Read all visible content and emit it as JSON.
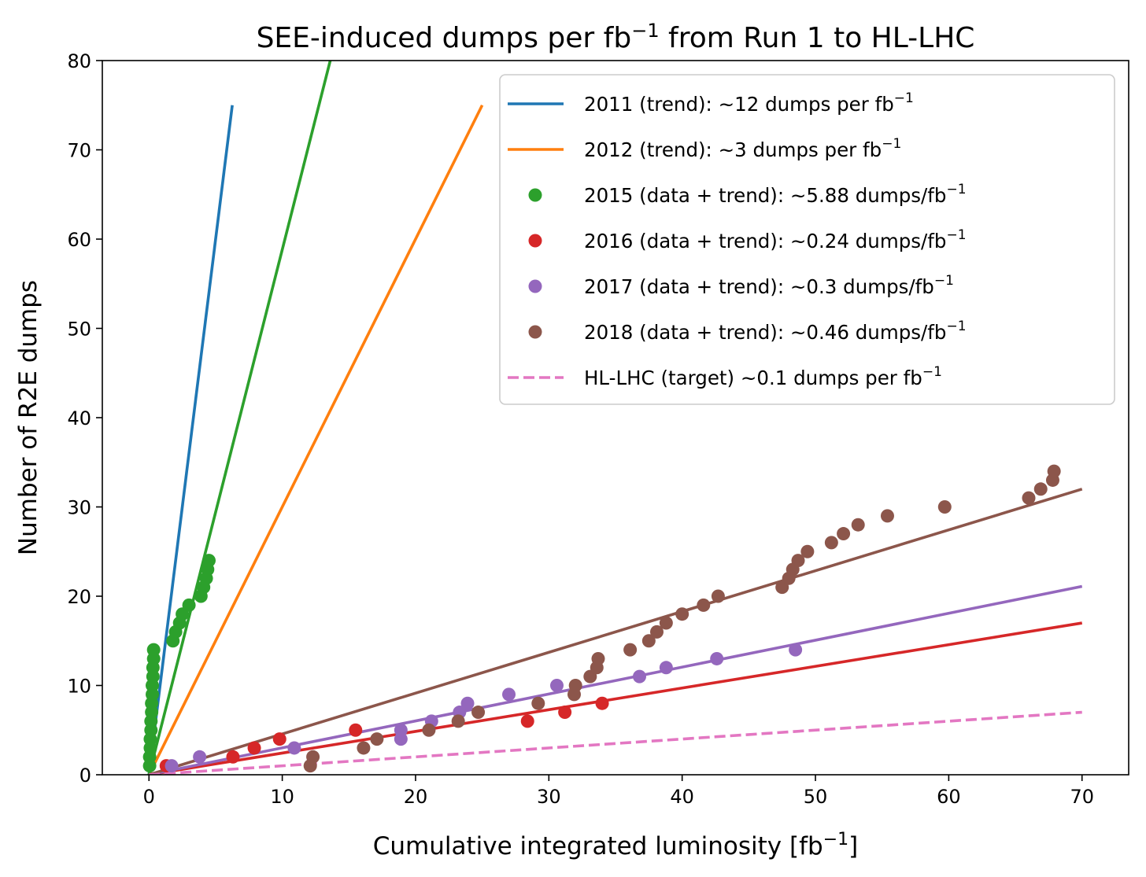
{
  "chart_data": {
    "type": "scatter",
    "title": {
      "pre": "SEE-induced dumps per fb",
      "sup": "−1",
      "post": " from Run 1 to HL-LHC"
    },
    "xlabel": {
      "pre": "Cumulative integrated luminosity [fb",
      "sup": "−1",
      "post": "]"
    },
    "ylabel": "Number of R2E dumps",
    "xlim": [
      -3.5,
      73.5
    ],
    "ylim": [
      0,
      80
    ],
    "xticks": [
      0,
      10,
      20,
      30,
      40,
      50,
      60,
      70
    ],
    "yticks": [
      0,
      10,
      20,
      30,
      40,
      50,
      60,
      70,
      80
    ],
    "grid": false,
    "legend_position": "top-right",
    "series": [
      {
        "name": "2011 (trend): ~12 dumps per fb",
        "sup": "−1",
        "kind": "line",
        "color": "#1f77b4",
        "line": [
          [
            0,
            0
          ],
          [
            6.25,
            75
          ]
        ]
      },
      {
        "name": "2012 (trend): ~3 dumps per fb",
        "sup": "−1",
        "kind": "line",
        "color": "#ff7f0e",
        "line": [
          [
            0,
            0
          ],
          [
            25,
            75
          ]
        ]
      },
      {
        "name": "2015 (data + trend): ~5.88 dumps/fb",
        "sup": "−1",
        "kind": "scatter",
        "color": "#2ca02c",
        "line": [
          [
            0,
            0
          ],
          [
            13.6,
            80
          ]
        ],
        "points": [
          [
            0.05,
            1
          ],
          [
            0.05,
            2
          ],
          [
            0.1,
            3
          ],
          [
            0.1,
            4
          ],
          [
            0.15,
            5
          ],
          [
            0.15,
            6
          ],
          [
            0.2,
            7
          ],
          [
            0.2,
            8
          ],
          [
            0.25,
            9
          ],
          [
            0.25,
            10
          ],
          [
            0.3,
            11
          ],
          [
            0.3,
            12
          ],
          [
            0.35,
            13
          ],
          [
            0.35,
            14
          ],
          [
            1.8,
            15
          ],
          [
            2.0,
            16
          ],
          [
            2.3,
            17
          ],
          [
            2.5,
            18
          ],
          [
            3.0,
            19
          ],
          [
            3.9,
            20
          ],
          [
            4.1,
            21
          ],
          [
            4.3,
            22
          ],
          [
            4.4,
            23
          ],
          [
            4.5,
            24
          ]
        ]
      },
      {
        "name": "2016 (data + trend): ~0.24 dumps/fb",
        "sup": "−1",
        "kind": "scatter",
        "color": "#d62728",
        "line": [
          [
            0,
            0
          ],
          [
            70,
            17
          ]
        ],
        "points": [
          [
            1.3,
            1
          ],
          [
            6.3,
            2
          ],
          [
            7.9,
            3
          ],
          [
            9.8,
            4
          ],
          [
            15.5,
            5
          ],
          [
            28.4,
            6
          ],
          [
            31.2,
            7
          ],
          [
            34.0,
            8
          ]
        ]
      },
      {
        "name": "2017 (data + trend): ~0.3 dumps/fb",
        "sup": "−1",
        "kind": "scatter",
        "color": "#9467bd",
        "line": [
          [
            0,
            0
          ],
          [
            70,
            21.1
          ]
        ],
        "points": [
          [
            1.7,
            1
          ],
          [
            3.8,
            2
          ],
          [
            10.9,
            3
          ],
          [
            18.9,
            4
          ],
          [
            18.9,
            5
          ],
          [
            21.2,
            6
          ],
          [
            23.3,
            7
          ],
          [
            23.9,
            8
          ],
          [
            27.0,
            9
          ],
          [
            30.6,
            10
          ],
          [
            36.8,
            11
          ],
          [
            38.8,
            12
          ],
          [
            42.6,
            13
          ],
          [
            48.5,
            14
          ]
        ]
      },
      {
        "name": "2018 (data + trend): ~0.46 dumps/fb",
        "sup": "−1",
        "kind": "scatter",
        "color": "#8c564b",
        "line": [
          [
            0,
            0
          ],
          [
            70,
            32
          ]
        ],
        "points": [
          [
            12.1,
            1
          ],
          [
            12.3,
            2
          ],
          [
            16.1,
            3
          ],
          [
            17.1,
            4
          ],
          [
            21.0,
            5
          ],
          [
            23.2,
            6
          ],
          [
            24.7,
            7
          ],
          [
            29.2,
            8
          ],
          [
            31.9,
            9
          ],
          [
            32.0,
            10
          ],
          [
            33.1,
            11
          ],
          [
            33.6,
            12
          ],
          [
            33.7,
            13
          ],
          [
            36.1,
            14
          ],
          [
            37.5,
            15
          ],
          [
            38.1,
            16
          ],
          [
            38.8,
            17
          ],
          [
            40.0,
            18
          ],
          [
            41.6,
            19
          ],
          [
            42.7,
            20
          ],
          [
            47.5,
            21
          ],
          [
            48.0,
            22
          ],
          [
            48.3,
            23
          ],
          [
            48.7,
            24
          ],
          [
            49.4,
            25
          ],
          [
            51.2,
            26
          ],
          [
            52.1,
            27
          ],
          [
            53.2,
            28
          ],
          [
            55.4,
            29
          ],
          [
            59.7,
            30
          ],
          [
            66.0,
            31
          ],
          [
            66.9,
            32
          ],
          [
            67.8,
            33
          ],
          [
            67.9,
            34
          ]
        ]
      },
      {
        "name": "HL-LHC (target) ~0.1 dumps per fb",
        "sup": "−1",
        "kind": "dashed",
        "color": "#e377c2",
        "line": [
          [
            0,
            0
          ],
          [
            70,
            7
          ]
        ]
      }
    ]
  }
}
